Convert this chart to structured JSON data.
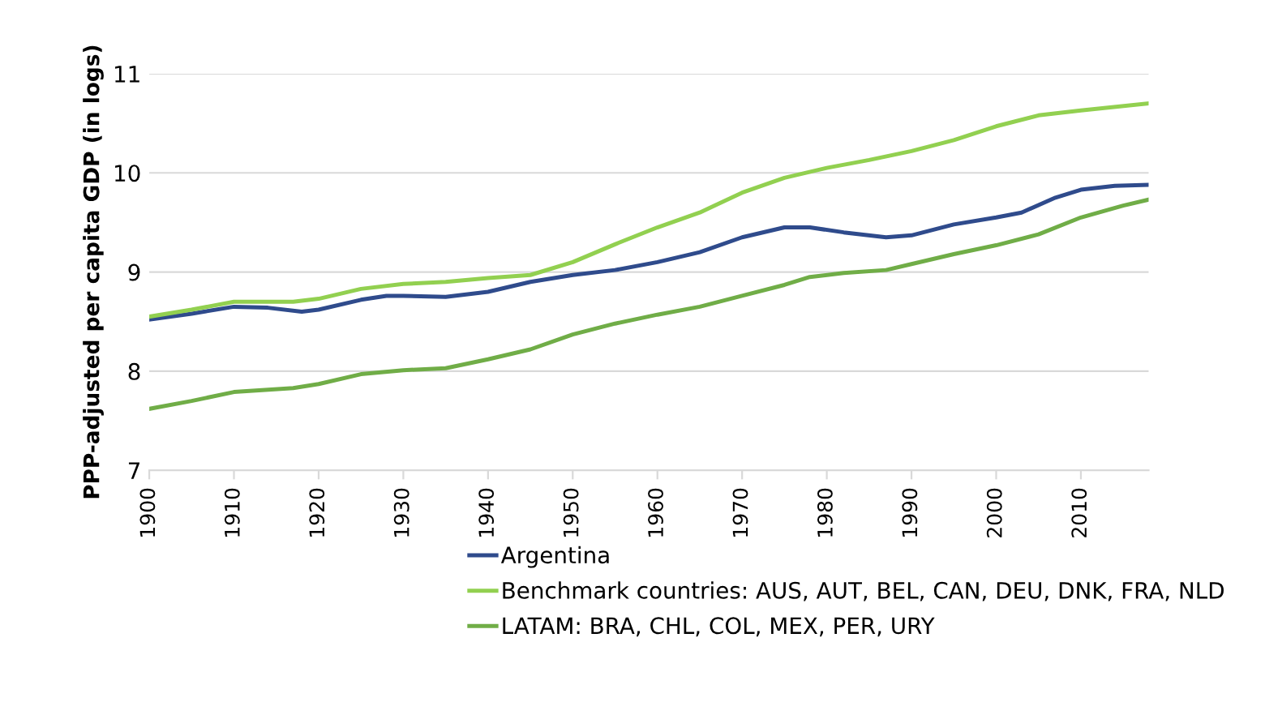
{
  "chart_data": {
    "type": "line",
    "ylabel": "PPP-adjusted per capita GDP (in logs)",
    "xlim": [
      1900,
      2018
    ],
    "xticks": [
      1900,
      1910,
      1920,
      1930,
      1940,
      1950,
      1960,
      1970,
      1980,
      1990,
      2000,
      2010
    ],
    "ylim": [
      7,
      11
    ],
    "yticks": [
      7,
      8,
      9,
      10,
      11
    ],
    "grid": "y",
    "legend": "bottom",
    "marker": "none",
    "line_style": "solid",
    "series": [
      {
        "name": "Argentina",
        "color": "#2f4b8c",
        "x": [
          1900,
          1905,
          1910,
          1914,
          1918,
          1920,
          1925,
          1928,
          1930,
          1935,
          1940,
          1945,
          1950,
          1955,
          1960,
          1965,
          1970,
          1975,
          1978,
          1982,
          1987,
          1990,
          1995,
          2000,
          2003,
          2007,
          2010,
          2014,
          2018
        ],
        "values": [
          8.52,
          8.58,
          8.65,
          8.64,
          8.6,
          8.62,
          8.72,
          8.76,
          8.76,
          8.75,
          8.8,
          8.9,
          8.97,
          9.02,
          9.1,
          9.2,
          9.35,
          9.45,
          9.45,
          9.4,
          9.35,
          9.37,
          9.48,
          9.55,
          9.6,
          9.75,
          9.83,
          9.87,
          9.88
        ]
      },
      {
        "name": "Benchmark countries: AUS, AUT, BEL, CAN, DEU, DNK, FRA, NLD",
        "color": "#92d050",
        "x": [
          1900,
          1905,
          1910,
          1917,
          1920,
          1925,
          1930,
          1935,
          1940,
          1945,
          1950,
          1955,
          1960,
          1965,
          1970,
          1975,
          1980,
          1985,
          1990,
          1995,
          2000,
          2005,
          2010,
          2018
        ],
        "values": [
          8.55,
          8.62,
          8.7,
          8.7,
          8.73,
          8.83,
          8.88,
          8.9,
          8.94,
          8.97,
          9.1,
          9.28,
          9.45,
          9.6,
          9.8,
          9.95,
          10.05,
          10.13,
          10.22,
          10.33,
          10.47,
          10.58,
          10.63,
          10.7
        ]
      },
      {
        "name": "LATAM: BRA, CHL, COL, MEX, PER, URY",
        "color": "#70ad47",
        "x": [
          1900,
          1905,
          1910,
          1917,
          1920,
          1925,
          1930,
          1935,
          1940,
          1945,
          1950,
          1955,
          1960,
          1965,
          1970,
          1975,
          1978,
          1982,
          1987,
          1990,
          1995,
          2000,
          2005,
          2010,
          2015,
          2018
        ],
        "values": [
          7.62,
          7.7,
          7.79,
          7.83,
          7.87,
          7.97,
          8.01,
          8.03,
          8.12,
          8.22,
          8.37,
          8.48,
          8.57,
          8.65,
          8.76,
          8.87,
          8.95,
          8.99,
          9.02,
          9.08,
          9.18,
          9.27,
          9.38,
          9.55,
          9.67,
          9.73
        ]
      }
    ]
  }
}
